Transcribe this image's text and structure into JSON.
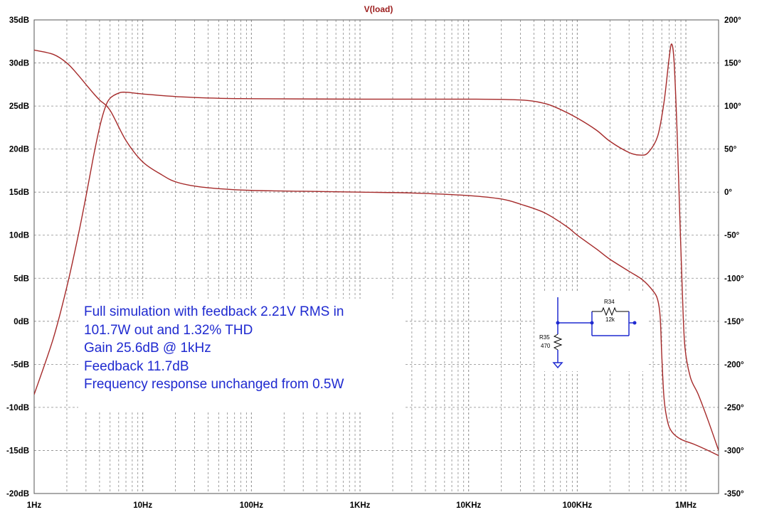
{
  "chart_data": {
    "type": "line",
    "title": "V(load)",
    "x_scale": "log",
    "xlim_hz": [
      1,
      2000000
    ],
    "x_ticks": [
      {
        "value": 1,
        "label": "1Hz"
      },
      {
        "value": 10,
        "label": "10Hz"
      },
      {
        "value": 100,
        "label": "100Hz"
      },
      {
        "value": 1000,
        "label": "1KHz"
      },
      {
        "value": 10000,
        "label": "10KHz"
      },
      {
        "value": 100000,
        "label": "100KHz"
      },
      {
        "value": 1000000,
        "label": "1MHz"
      }
    ],
    "y_left": {
      "range": [
        -20,
        35
      ],
      "ticks": [
        35,
        30,
        25,
        20,
        15,
        10,
        5,
        0,
        -5,
        -10,
        -15,
        -20
      ],
      "labels": [
        "35dB",
        "30dB",
        "25dB",
        "20dB",
        "15dB",
        "10dB",
        "5dB",
        "0dB",
        "-5dB",
        "-10dB",
        "-15dB",
        "-20dB"
      ]
    },
    "y_right": {
      "range": [
        -350,
        200
      ],
      "ticks": [
        200,
        150,
        100,
        50,
        0,
        -50,
        -100,
        -150,
        -200,
        -250,
        -300,
        -350
      ],
      "labels": [
        "200°",
        "150°",
        "100°",
        "50°",
        "0°",
        "-50°",
        "-100°",
        "-150°",
        "-200°",
        "-250°",
        "-300°",
        "-350°"
      ]
    },
    "grid": true,
    "series": [
      {
        "role": "magnitude",
        "axis": "left",
        "color": "#a52a2a",
        "points": [
          [
            1,
            -8.5
          ],
          [
            1.5,
            -2
          ],
          [
            2,
            4
          ],
          [
            2.5,
            9.5
          ],
          [
            3,
            14.5
          ],
          [
            3.5,
            19
          ],
          [
            4,
            22.5
          ],
          [
            4.5,
            24.8
          ],
          [
            5,
            25.9
          ],
          [
            6,
            26.5
          ],
          [
            7,
            26.6
          ],
          [
            10,
            26.4
          ],
          [
            20,
            26.1
          ],
          [
            50,
            25.9
          ],
          [
            100,
            25.85
          ],
          [
            1000,
            25.8
          ],
          [
            10000,
            25.8
          ],
          [
            30000,
            25.7
          ],
          [
            50000,
            25.3
          ],
          [
            70000,
            24.6
          ],
          [
            100000,
            23.6
          ],
          [
            150000,
            22.2
          ],
          [
            200000,
            20.9
          ],
          [
            300000,
            19.6
          ],
          [
            380000,
            19.3
          ],
          [
            450000,
            19.6
          ],
          [
            550000,
            21.5
          ],
          [
            630000,
            25.5
          ],
          [
            700000,
            30.5
          ],
          [
            740000,
            32.2
          ],
          [
            780000,
            30
          ],
          [
            830000,
            22
          ],
          [
            880000,
            12
          ],
          [
            930000,
            3
          ],
          [
            980000,
            -3
          ],
          [
            1100000,
            -6.5
          ],
          [
            1300000,
            -8.5
          ],
          [
            1600000,
            -11.5
          ],
          [
            2000000,
            -15
          ]
        ]
      },
      {
        "role": "phase",
        "axis": "right",
        "color": "#a52a2a",
        "points": [
          [
            1,
            165
          ],
          [
            1.5,
            160
          ],
          [
            2,
            150
          ],
          [
            2.5,
            137
          ],
          [
            3,
            125
          ],
          [
            3.5,
            115
          ],
          [
            4,
            107
          ],
          [
            5,
            95
          ],
          [
            7,
            60
          ],
          [
            10,
            35
          ],
          [
            15,
            20
          ],
          [
            20,
            12
          ],
          [
            30,
            7
          ],
          [
            50,
            4
          ],
          [
            100,
            2
          ],
          [
            300,
            1
          ],
          [
            1000,
            0
          ],
          [
            3000,
            -1
          ],
          [
            10000,
            -4
          ],
          [
            20000,
            -8
          ],
          [
            30000,
            -14
          ],
          [
            50000,
            -24
          ],
          [
            80000,
            -40
          ],
          [
            100000,
            -50
          ],
          [
            150000,
            -66
          ],
          [
            200000,
            -78
          ],
          [
            300000,
            -92
          ],
          [
            400000,
            -102
          ],
          [
            500000,
            -115
          ],
          [
            550000,
            -125
          ],
          [
            580000,
            -145
          ],
          [
            600000,
            -190
          ],
          [
            630000,
            -240
          ],
          [
            680000,
            -267
          ],
          [
            750000,
            -279
          ],
          [
            900000,
            -287
          ],
          [
            1200000,
            -293
          ],
          [
            1600000,
            -300
          ],
          [
            2000000,
            -306
          ]
        ]
      }
    ],
    "annotation_lines": [
      "Full simulation with feedback 2.21V RMS in",
      "101.7W out and 1.32% THD",
      "Gain 25.6dB @ 1kHz",
      "Feedback 11.7dB",
      "Frequency response unchanged from 0.5W"
    ],
    "schematic_labels": {
      "r35_name": "R35",
      "r35_value": "470",
      "r34_name": "R34",
      "r34_value": "12k"
    }
  }
}
